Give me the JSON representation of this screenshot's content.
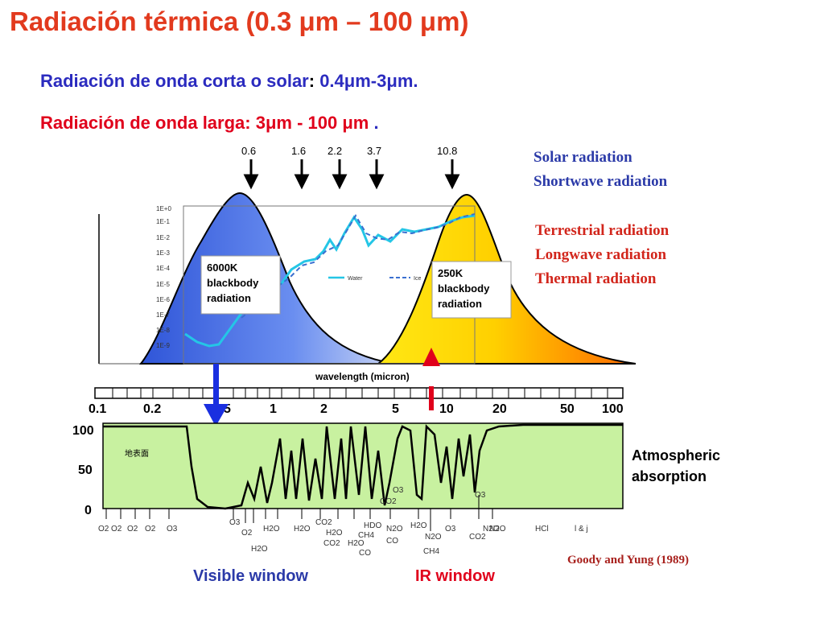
{
  "title": "Radiación térmica (0.3 μm – 100 μm)",
  "shortwave": {
    "label": "Radiación de onda corta o solar",
    "sep": ":",
    "range": " 0.4μm-3μm."
  },
  "longwave": {
    "label": "Radiación de onda larga: 3μm - 100 μm",
    "tail": " ."
  },
  "top_ticks": [
    "0.6",
    "1.6",
    "2.2",
    "3.7",
    "10.8"
  ],
  "legend": {
    "solar1": "Solar radiation",
    "solar2": "Shortwave radiation",
    "terr1": "Terrestrial radiation",
    "terr2": "Longwave radiation",
    "terr3": "Thermal radiation"
  },
  "bb_sun": {
    "line1": "6000K",
    "line2": "blackbody",
    "line3": "radiation"
  },
  "bb_earth": {
    "line1": "250K",
    "line2": "blackbody",
    "line3": "radiation"
  },
  "transmission_yticks": [
    "1E+0",
    "1E-1",
    "1E-2",
    "1E-3",
    "1E-4",
    "1E-5",
    "1E-6",
    "1E-7",
    "1E-8",
    "1E-9"
  ],
  "mini_legend": {
    "water": "Water",
    "ice": "Ice"
  },
  "xaxis_label": "wavelength (micron)",
  "scale_ticks": [
    "0.1",
    "0.2",
    "5",
    "1",
    "2",
    "5",
    "10",
    "20",
    "50",
    "100"
  ],
  "absorption": {
    "label1": "Atmospheric",
    "label2": "absorption",
    "y_ticks": [
      "100",
      "50",
      "0"
    ],
    "inset": "地表面"
  },
  "gases": [
    "O2",
    "O2",
    "O2",
    "O2",
    "O3",
    "O3",
    "O2",
    "H2O",
    "H2O",
    "H2O",
    "CO2",
    "H2O",
    "CO2",
    "HDO",
    "N2O",
    "CO",
    "CO2",
    "O3",
    "CO",
    "H2O",
    "N2O",
    "CH4",
    "H2O",
    "N2O",
    "CH4",
    "O3",
    "CO2",
    "N2O",
    "O3",
    "HCl",
    "l & j"
  ],
  "visible_window": "Visible window",
  "ir_window": "IR window",
  "citation": "Goody and Yung (1989)"
}
